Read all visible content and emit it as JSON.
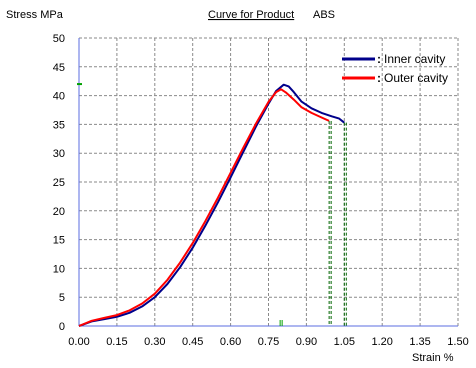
{
  "chart_data": {
    "type": "line",
    "title": "Curve for Product",
    "product": "ABS",
    "ylabel": "Stress MPa",
    "xlabel": "Strain %",
    "xlim": [
      0,
      1.5
    ],
    "ylim": [
      0,
      50
    ],
    "x_ticks": [
      "0.00",
      "0.15",
      "0.30",
      "0.45",
      "0.60",
      "0.75",
      "0.90",
      "1.05",
      "1.20",
      "1.35",
      "1.50"
    ],
    "y_ticks": [
      "0",
      "5",
      "10",
      "15",
      "20",
      "25",
      "30",
      "35",
      "40",
      "45",
      "50"
    ],
    "grid": true,
    "legend_position": "top-right",
    "series": [
      {
        "name": "Inner cavity",
        "color": "#00008b",
        "points": [
          [
            0,
            0
          ],
          [
            0.05,
            0.8
          ],
          [
            0.1,
            1.2
          ],
          [
            0.15,
            1.6
          ],
          [
            0.2,
            2.3
          ],
          [
            0.25,
            3.4
          ],
          [
            0.3,
            5.0
          ],
          [
            0.35,
            7.3
          ],
          [
            0.4,
            10.2
          ],
          [
            0.45,
            13.6
          ],
          [
            0.5,
            17.4
          ],
          [
            0.55,
            21.5
          ],
          [
            0.6,
            25.8
          ],
          [
            0.65,
            30.2
          ],
          [
            0.7,
            34.6
          ],
          [
            0.75,
            38.6
          ],
          [
            0.78,
            40.8
          ],
          [
            0.81,
            41.9
          ],
          [
            0.83,
            41.6
          ],
          [
            0.85,
            40.6
          ],
          [
            0.88,
            39.0
          ],
          [
            0.92,
            37.8
          ],
          [
            0.96,
            37.0
          ],
          [
            1.0,
            36.4
          ],
          [
            1.03,
            36.0
          ],
          [
            1.05,
            35.3
          ]
        ],
        "drop_strain": 1.05
      },
      {
        "name": "Outer cavity",
        "color": "#ff0000",
        "points": [
          [
            0,
            0
          ],
          [
            0.05,
            0.9
          ],
          [
            0.1,
            1.4
          ],
          [
            0.15,
            1.9
          ],
          [
            0.2,
            2.7
          ],
          [
            0.25,
            3.9
          ],
          [
            0.3,
            5.6
          ],
          [
            0.35,
            8.0
          ],
          [
            0.4,
            11.0
          ],
          [
            0.45,
            14.4
          ],
          [
            0.5,
            18.2
          ],
          [
            0.55,
            22.3
          ],
          [
            0.6,
            26.6
          ],
          [
            0.65,
            30.9
          ],
          [
            0.7,
            35.1
          ],
          [
            0.75,
            38.9
          ],
          [
            0.78,
            40.6
          ],
          [
            0.8,
            41.1
          ],
          [
            0.82,
            40.5
          ],
          [
            0.85,
            39.3
          ],
          [
            0.88,
            38.0
          ],
          [
            0.92,
            37.0
          ],
          [
            0.96,
            36.2
          ],
          [
            0.99,
            35.6
          ]
        ],
        "drop_strain": 0.99
      }
    ],
    "markers": {
      "y_axis_tick_value": 42,
      "x_axis_tick_value": 0.8,
      "color": "#00a000"
    }
  }
}
